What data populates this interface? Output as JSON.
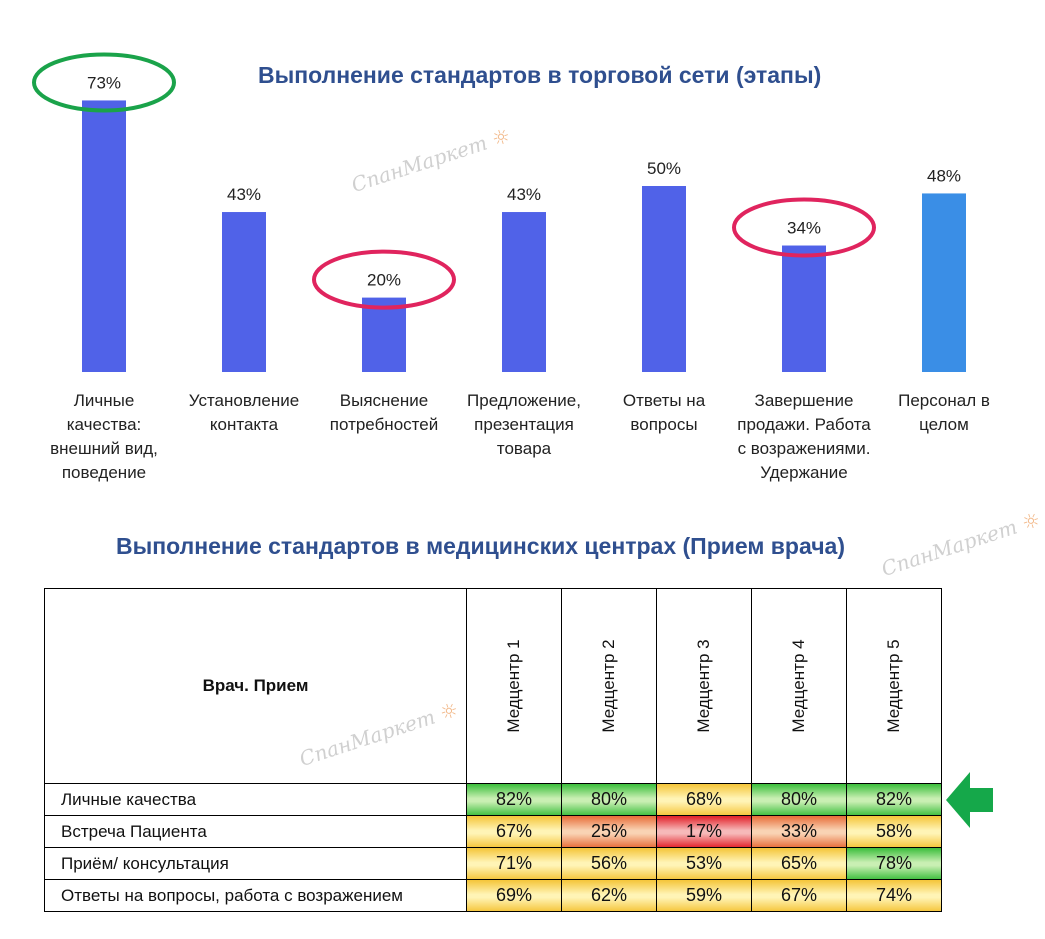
{
  "chart_data": {
    "type": "bar",
    "title": "Выполнение стандартов в торговой сети (этапы)",
    "categories": [
      [
        "Личные",
        "качества:",
        "внешний вид,",
        "поведение"
      ],
      [
        "Установление",
        "контакта"
      ],
      [
        "Выяснение",
        "потребностей"
      ],
      [
        "Предложение,",
        "презентация",
        "товара"
      ],
      [
        "Ответы на",
        "вопросы"
      ],
      [
        "Завершение",
        "продажи. Работа",
        "с возражениями.",
        "Удержание"
      ],
      [
        "Персонал в",
        "целом"
      ]
    ],
    "values": [
      73,
      43,
      20,
      43,
      50,
      34,
      48
    ],
    "value_labels": [
      "73%",
      "43%",
      "20%",
      "43%",
      "50%",
      "34%",
      "48%"
    ],
    "ylim": [
      0,
      100
    ],
    "xlabel": "",
    "ylabel": "",
    "highlights": [
      {
        "index": 0,
        "color": "#1aa34a"
      },
      {
        "index": 2,
        "color": "#e0245e"
      },
      {
        "index": 5,
        "color": "#e0245e"
      }
    ],
    "colors": {
      "bar": "#5062e8",
      "total_bar": "#3a8ee6"
    }
  },
  "table": {
    "title": "Выполнение стандартов в медицинских центрах (Прием врача)",
    "corner_label": "Врач. Прием",
    "columns": [
      "Медцентр 1",
      "Медцентр 2",
      "Медцентр 3",
      "Медцентр 4",
      "Медцентр 5"
    ],
    "rows": [
      {
        "label": "Личные качества",
        "values": [
          "82%",
          "80%",
          "68%",
          "80%",
          "82%"
        ],
        "levels": [
          "hi",
          "hi",
          "mid",
          "hi",
          "hi"
        ]
      },
      {
        "label": "Встреча Пациента",
        "values": [
          "67%",
          "25%",
          "17%",
          "33%",
          "58%"
        ],
        "levels": [
          "mid",
          "low",
          "bad",
          "low",
          "mid"
        ]
      },
      {
        "label": "Приём/ консультация",
        "values": [
          "71%",
          "56%",
          "53%",
          "65%",
          "78%"
        ],
        "levels": [
          "mid",
          "mid",
          "mid",
          "mid",
          "hi"
        ]
      },
      {
        "label": "Ответы на вопросы, работа с возражением",
        "values": [
          "69%",
          "62%",
          "59%",
          "67%",
          "74%"
        ],
        "levels": [
          "mid",
          "mid",
          "mid",
          "mid",
          "mid"
        ]
      }
    ],
    "arrow_row": 0,
    "arrow_color": "#15a84a"
  },
  "watermark": {
    "text": "СпанМаркет"
  }
}
